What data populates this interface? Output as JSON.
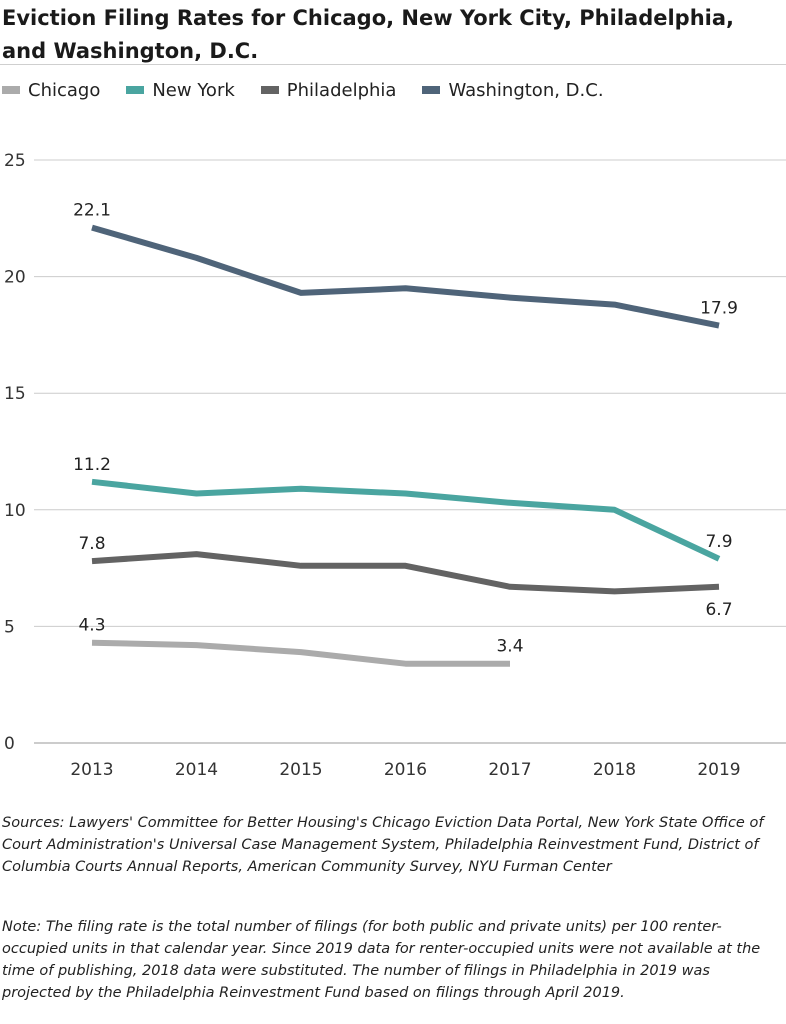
{
  "title": "Eviction Filing Rates for Chicago, New York City, Philadelphia, and Washington, D.C.",
  "sources": "Sources: Lawyers' Committee for Better Housing's Chicago Eviction Data Portal, New York State Office of Court Administration's Universal Case Management System, Philadelphia Reinvestment Fund, District of Columbia Courts Annual Reports, American Community Survey, NYU Furman Center",
  "note": "Note: The filing rate is the total number of filings (for both public and private units) per 100 renter-occupied units in that calendar year. Since 2019 data for renter-occupied units were not available at the time of publishing, 2018 data were substituted. The number of filings in Philadelphia in 2019 was projected by the Philadelphia Reinvestment Fund based on filings through April 2019.",
  "chart_data": {
    "type": "line",
    "title": "Eviction Filing Rates for Chicago, New York City, Philadelphia, and Washington, D.C.",
    "xlabel": "",
    "ylabel": "",
    "x": [
      "2013",
      "2014",
      "2015",
      "2016",
      "2017",
      "2018",
      "2019"
    ],
    "ylim": [
      0,
      25
    ],
    "yticks": [
      0,
      5,
      10,
      15,
      20,
      25
    ],
    "grid": "horizontal",
    "legend": "top-left",
    "series": [
      {
        "name": "Chicago",
        "color": "#ababab",
        "values": [
          4.3,
          4.2,
          3.9,
          3.4,
          3.4,
          null,
          null
        ],
        "labels": [
          {
            "x": "2013",
            "text": "4.3",
            "pos": "above"
          },
          {
            "x": "2017",
            "text": "3.4",
            "pos": "above"
          }
        ]
      },
      {
        "name": "New York",
        "color": "#4aa5a0",
        "values": [
          11.2,
          10.7,
          10.9,
          10.7,
          10.3,
          10.0,
          7.9
        ],
        "labels": [
          {
            "x": "2013",
            "text": "11.2",
            "pos": "above"
          },
          {
            "x": "2019",
            "text": "7.9",
            "pos": "above"
          }
        ]
      },
      {
        "name": "Philadelphia",
        "color": "#636363",
        "values": [
          7.8,
          8.1,
          7.6,
          7.6,
          6.7,
          6.5,
          6.7
        ],
        "labels": [
          {
            "x": "2013",
            "text": "7.8",
            "pos": "above"
          },
          {
            "x": "2019",
            "text": "6.7",
            "pos": "below"
          }
        ]
      },
      {
        "name": "Washington, D.C.",
        "color": "#4f6479",
        "values": [
          22.1,
          20.8,
          19.3,
          19.5,
          19.1,
          18.8,
          17.9
        ],
        "labels": [
          {
            "x": "2013",
            "text": "22.1",
            "pos": "above"
          },
          {
            "x": "2019",
            "text": "17.9",
            "pos": "above"
          }
        ]
      }
    ]
  }
}
